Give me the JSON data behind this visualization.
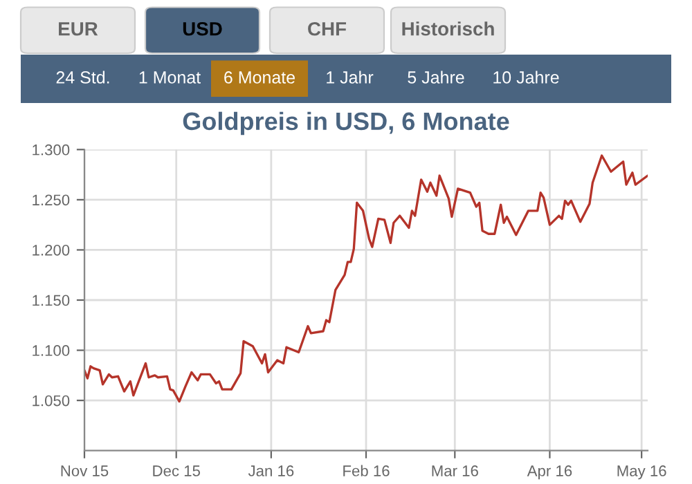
{
  "chart_data": {
    "type": "line",
    "title": "Goldpreis in USD, 6 Monate",
    "annotations": [
      "EUR",
      "USD",
      "CHF",
      "Historisch",
      "24 Std.",
      "1 Monat",
      "6 Monate",
      "1 Jahr",
      "5 Jahre",
      "10 Jahre"
    ],
    "x": [
      "2015-11-01",
      "2015-11-02",
      "2015-11-03",
      "2015-11-04",
      "2015-11-06",
      "2015-11-07",
      "2015-11-09",
      "2015-11-10",
      "2015-11-12",
      "2015-11-14",
      "2015-11-16",
      "2015-11-17",
      "2015-11-21",
      "2015-11-22",
      "2015-11-24",
      "2015-11-25",
      "2015-11-28",
      "2015-11-29",
      "2015-11-30",
      "2015-12-02",
      "2015-12-04",
      "2015-12-06",
      "2015-12-08",
      "2015-12-09",
      "2015-12-12",
      "2015-12-14",
      "2015-12-15",
      "2015-12-16",
      "2015-12-19",
      "2015-12-22",
      "2015-12-23",
      "2015-12-26",
      "2015-12-29",
      "2015-12-30",
      "2015-12-31",
      "2016-01-03",
      "2016-01-05",
      "2016-01-06",
      "2016-01-10",
      "2016-01-13",
      "2016-01-14",
      "2016-01-18",
      "2016-01-19",
      "2016-01-20",
      "2016-01-22",
      "2016-01-25",
      "2016-01-26",
      "2016-01-27",
      "2016-01-28",
      "2016-01-29",
      "2016-01-31",
      "2016-02-02",
      "2016-02-03",
      "2016-02-05",
      "2016-02-07",
      "2016-02-09",
      "2016-02-10",
      "2016-02-12",
      "2016-02-15",
      "2016-02-16",
      "2016-02-17",
      "2016-02-19",
      "2016-02-21",
      "2016-02-22",
      "2016-02-24",
      "2016-02-25",
      "2016-02-28",
      "2016-02-29",
      "2016-03-02",
      "2016-03-06",
      "2016-03-08",
      "2016-03-09",
      "2016-03-10",
      "2016-03-12",
      "2016-03-14",
      "2016-03-16",
      "2016-03-17",
      "2016-03-18",
      "2016-03-21",
      "2016-03-25",
      "2016-03-28",
      "2016-03-29",
      "2016-03-30",
      "2016-04-01",
      "2016-04-04",
      "2016-04-05",
      "2016-04-06",
      "2016-04-07",
      "2016-04-08",
      "2016-04-11",
      "2016-04-14",
      "2016-04-15",
      "2016-04-18",
      "2016-04-21",
      "2016-04-25",
      "2016-04-26",
      "2016-04-28",
      "2016-04-29",
      "2016-05-03"
    ],
    "series": [
      {
        "color": "#b5342a",
        "values": [
          1.08,
          1.072,
          1.084,
          1.082,
          1.08,
          1.066,
          1.076,
          1.073,
          1.074,
          1.059,
          1.069,
          1.055,
          1.087,
          1.073,
          1.075,
          1.073,
          1.074,
          1.061,
          1.06,
          1.049,
          1.064,
          1.078,
          1.07,
          1.076,
          1.076,
          1.067,
          1.069,
          1.061,
          1.061,
          1.077,
          1.109,
          1.104,
          1.087,
          1.096,
          1.078,
          1.09,
          1.087,
          1.103,
          1.098,
          1.124,
          1.117,
          1.119,
          1.13,
          1.128,
          1.16,
          1.175,
          1.188,
          1.188,
          1.201,
          1.247,
          1.239,
          1.211,
          1.203,
          1.231,
          1.23,
          1.207,
          1.227,
          1.234,
          1.222,
          1.239,
          1.234,
          1.27,
          1.258,
          1.267,
          1.254,
          1.274,
          1.251,
          1.233,
          1.261,
          1.257,
          1.243,
          1.247,
          1.219,
          1.216,
          1.216,
          1.245,
          1.227,
          1.233,
          1.215,
          1.239,
          1.239,
          1.257,
          1.252,
          1.225,
          1.234,
          1.231,
          1.249,
          1.245,
          1.249,
          1.228,
          1.246,
          1.267,
          1.294,
          1.278,
          1.288,
          1.265,
          1.277,
          1.265,
          1.274
        ]
      }
    ],
    "xlim": [
      "2015-11-01",
      "2016-05-03"
    ],
    "xticks": [
      {
        "value": "2015-11-01",
        "label": "Nov 15"
      },
      {
        "value": "2015-12-01",
        "label": "Dec 15"
      },
      {
        "value": "2016-01-01",
        "label": "Jan 16"
      },
      {
        "value": "2016-02-01",
        "label": "Feb 16"
      },
      {
        "value": "2016-03-01",
        "label": "Mar 16"
      },
      {
        "value": "2016-04-01",
        "label": "Apr 16"
      },
      {
        "value": "2016-05-01",
        "label": "May 16"
      }
    ],
    "ylim": [
      1.0,
      1.3
    ],
    "yticks": [
      {
        "value": 1.05,
        "label": "1.050"
      },
      {
        "value": 1.1,
        "label": "1.100"
      },
      {
        "value": 1.15,
        "label": "1.150"
      },
      {
        "value": 1.2,
        "label": "1.200"
      },
      {
        "value": 1.25,
        "label": "1.250"
      },
      {
        "value": 1.3,
        "label": "1.300"
      }
    ],
    "grid": true,
    "marker": "none",
    "line_style": "solid"
  }
}
